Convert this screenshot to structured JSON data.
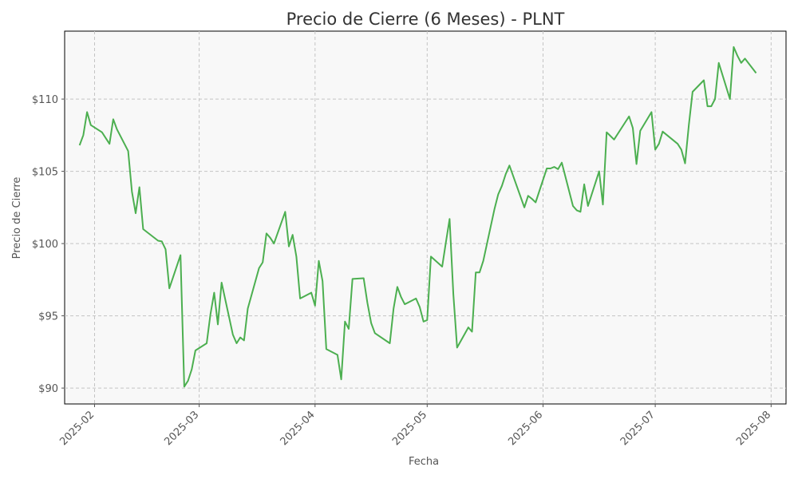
{
  "chart_data": {
    "type": "line",
    "title": "Precio de Cierre (6 Meses) - PLNT",
    "xlabel": "Fecha",
    "ylabel": "Precio de Cierre",
    "ylim": [
      88.9,
      114.7
    ],
    "xlim": [
      "2025-01-24",
      "2025-08-05"
    ],
    "grid": true,
    "line_color": "#4caf50",
    "background_color": "#f8f8f8",
    "y_ticks": [
      {
        "value": 90,
        "label": "$90"
      },
      {
        "value": 95,
        "label": "$95"
      },
      {
        "value": 100,
        "label": "$100"
      },
      {
        "value": 105,
        "label": "$105"
      },
      {
        "value": 110,
        "label": "$110"
      }
    ],
    "x_ticks": [
      {
        "value": "2025-02-01",
        "label": "2025-02"
      },
      {
        "value": "2025-03-01",
        "label": "2025-03"
      },
      {
        "value": "2025-04-01",
        "label": "2025-04"
      },
      {
        "value": "2025-05-01",
        "label": "2025-05"
      },
      {
        "value": "2025-06-01",
        "label": "2025-06"
      },
      {
        "value": "2025-07-01",
        "label": "2025-07"
      },
      {
        "value": "2025-08-01",
        "label": "2025-08"
      }
    ],
    "series": [
      {
        "x": [
          "2025-01-28",
          "2025-01-29",
          "2025-01-30",
          "2025-01-31",
          "2025-02-03",
          "2025-02-04",
          "2025-02-05",
          "2025-02-06",
          "2025-02-07",
          "2025-02-10",
          "2025-02-11",
          "2025-02-12",
          "2025-02-13",
          "2025-02-14",
          "2025-02-18",
          "2025-02-19",
          "2025-02-20",
          "2025-02-21",
          "2025-02-24",
          "2025-02-25",
          "2025-02-26",
          "2025-02-27",
          "2025-02-28",
          "2025-03-03",
          "2025-03-04",
          "2025-03-05",
          "2025-03-06",
          "2025-03-07",
          "2025-03-10",
          "2025-03-11",
          "2025-03-12",
          "2025-03-13",
          "2025-03-14",
          "2025-03-17",
          "2025-03-18",
          "2025-03-19",
          "2025-03-20",
          "2025-03-21",
          "2025-03-24",
          "2025-03-25",
          "2025-03-26",
          "2025-03-27",
          "2025-03-28",
          "2025-03-31",
          "2025-04-01",
          "2025-04-02",
          "2025-04-03",
          "2025-04-04",
          "2025-04-07",
          "2025-04-08",
          "2025-04-09",
          "2025-04-10",
          "2025-04-11",
          "2025-04-14",
          "2025-04-15",
          "2025-04-16",
          "2025-04-17",
          "2025-04-21",
          "2025-04-22",
          "2025-04-23",
          "2025-04-24",
          "2025-04-25",
          "2025-04-28",
          "2025-04-29",
          "2025-04-30",
          "2025-05-01",
          "2025-05-02",
          "2025-05-05",
          "2025-05-06",
          "2025-05-07",
          "2025-05-08",
          "2025-05-09",
          "2025-05-12",
          "2025-05-13",
          "2025-05-14",
          "2025-05-15",
          "2025-05-16",
          "2025-05-19",
          "2025-05-20",
          "2025-05-21",
          "2025-05-22",
          "2025-05-23",
          "2025-05-27",
          "2025-05-28",
          "2025-05-29",
          "2025-05-30",
          "2025-06-02",
          "2025-06-03",
          "2025-06-04",
          "2025-06-05",
          "2025-06-06",
          "2025-06-09",
          "2025-06-10",
          "2025-06-11",
          "2025-06-12",
          "2025-06-13",
          "2025-06-16",
          "2025-06-17",
          "2025-06-18",
          "2025-06-20",
          "2025-06-23",
          "2025-06-24",
          "2025-06-25",
          "2025-06-26",
          "2025-06-27",
          "2025-06-30",
          "2025-07-01",
          "2025-07-02",
          "2025-07-03",
          "2025-07-07",
          "2025-07-08",
          "2025-07-09",
          "2025-07-10",
          "2025-07-11",
          "2025-07-14",
          "2025-07-15",
          "2025-07-16",
          "2025-07-17",
          "2025-07-18",
          "2025-07-21",
          "2025-07-22",
          "2025-07-23",
          "2025-07-24",
          "2025-07-25",
          "2025-07-28"
        ],
        "values": [
          106.8,
          107.5,
          109.1,
          108.2,
          107.7,
          107.3,
          106.9,
          108.6,
          107.9,
          106.4,
          103.6,
          102.1,
          103.9,
          101.0,
          100.2,
          100.15,
          99.6,
          96.9,
          99.2,
          90.1,
          90.5,
          91.3,
          92.6,
          93.1,
          95.1,
          96.6,
          94.4,
          97.3,
          93.7,
          93.1,
          93.5,
          93.3,
          95.5,
          98.3,
          98.7,
          100.7,
          100.4,
          100.0,
          102.2,
          99.8,
          100.6,
          99.1,
          96.2,
          96.6,
          95.7,
          98.8,
          97.4,
          92.7,
          92.3,
          90.6,
          94.6,
          94.1,
          97.55,
          97.6,
          95.9,
          94.5,
          93.8,
          93.1,
          95.5,
          97.0,
          96.3,
          95.8,
          96.2,
          95.6,
          94.6,
          94.7,
          99.1,
          98.4,
          100.1,
          101.7,
          96.5,
          92.8,
          94.2,
          93.9,
          98.0,
          98.0,
          98.8,
          102.4,
          103.4,
          104.0,
          104.8,
          105.4,
          102.5,
          103.3,
          103.1,
          102.85,
          105.2,
          105.2,
          105.3,
          105.15,
          105.6,
          102.6,
          102.3,
          102.2,
          104.1,
          102.6,
          105.0,
          102.7,
          107.7,
          107.2,
          108.4,
          108.8,
          108.0,
          105.5,
          107.8,
          109.1,
          106.5,
          106.9,
          107.75,
          106.9,
          106.5,
          105.55,
          108.2,
          110.5,
          111.3,
          109.5,
          109.5,
          110.0,
          112.5,
          110.0,
          113.6,
          113.0,
          112.5,
          112.8,
          111.8
        ]
      }
    ]
  }
}
